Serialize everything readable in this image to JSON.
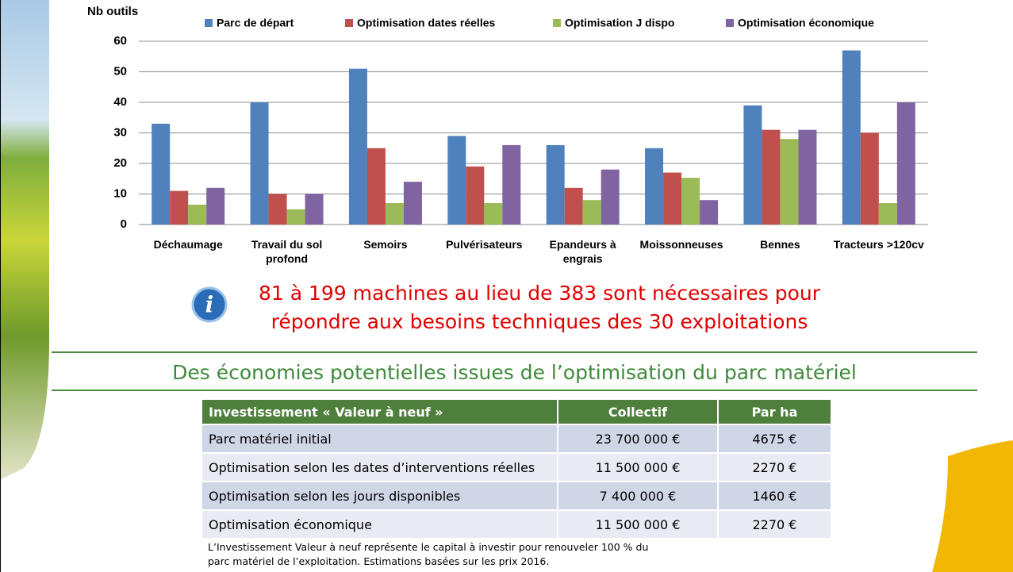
{
  "chart_data": {
    "type": "bar",
    "ylabel": "Nb outils",
    "categories": [
      "Déchaumage",
      "Travail du sol profond",
      "Semoirs",
      "Pulvérisateurs",
      "Epandeurs à engrais",
      "Moissonneuses",
      "Bennes",
      "Tracteurs >120cv"
    ],
    "series": [
      {
        "name": "Parc de départ",
        "color": "#4f81bd",
        "values": [
          33,
          40,
          51,
          29,
          26,
          25,
          39,
          57
        ]
      },
      {
        "name": "Optimisation dates réelles",
        "color": "#c0504d",
        "values": [
          11,
          10,
          25,
          19,
          12,
          17,
          31,
          30
        ]
      },
      {
        "name": "Optimisation J dispo",
        "color": "#9bbb59",
        "values": [
          6.5,
          5,
          7,
          7,
          8,
          15.3,
          28,
          7
        ]
      },
      {
        "name": "Optimisation économique",
        "color": "#8064a2",
        "values": [
          12,
          10,
          14,
          26,
          18,
          8,
          31,
          40
        ]
      }
    ],
    "ylim": [
      0,
      60
    ],
    "yticks": [
      0,
      10,
      20,
      30,
      40,
      50,
      60
    ],
    "grid": true,
    "legend": "top"
  },
  "info_text": [
    "81 à 199 machines au lieu de 383 sont nécessaires pour",
    "répondre aux besoins techniques des 30 exploitations"
  ],
  "section_title": "Des économies potentielles issues de l’optimisation du parc matériel",
  "table": {
    "header": [
      "Investissement « Valeur à neuf »",
      "Collectif",
      "Par ha"
    ],
    "rows": [
      [
        "Parc matériel initial",
        "23 700 000 €",
        "4675 €"
      ],
      [
        "Optimisation selon les dates d’interventions réelles",
        "11 500 000 €",
        "2270 €"
      ],
      [
        "Optimisation selon les jours disponibles",
        "7 400 000 €",
        "1460 €"
      ],
      [
        "Optimisation économique",
        "11 500 000 €",
        "2270 €"
      ]
    ]
  },
  "footnote": "L’Investissement Valeur à neuf représente le capital à investir pour renouveler 100 % du parc matériel de l’exploitation. Estimations basées sur les prix 2016."
}
